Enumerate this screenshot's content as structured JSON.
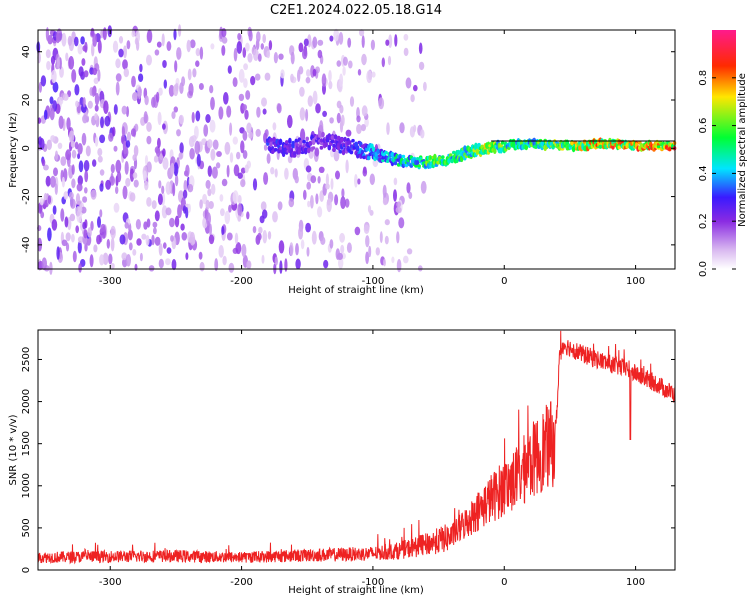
{
  "figure": {
    "title": "C2E1.2024.022.05.18.G14"
  },
  "chart_data": [
    {
      "type": "heatmap",
      "xlabel": "Height of straight line (km)",
      "ylabel": "Frequency (Hz)",
      "xlim": [
        -355,
        130
      ],
      "ylim": [
        -50,
        49
      ],
      "x_ticks": [
        -300,
        -200,
        -100,
        0,
        100
      ],
      "y_ticks": [
        -40,
        -20,
        0,
        20,
        40
      ],
      "colorbar": {
        "label": "Normalized spectral amplitude",
        "range": [
          0.0,
          1.0
        ],
        "ticks": [
          0.0,
          0.2,
          0.4,
          0.6,
          0.8
        ],
        "colormap": "white-purple-blue-cyan-green-yellow-red-magenta"
      },
      "ridge": {
        "x": [
          -180,
          -160,
          -140,
          -120,
          -100,
          -80,
          -60,
          -45,
          -30,
          -15,
          0,
          20,
          50,
          80,
          100,
          130
        ],
        "freq": [
          1,
          0,
          3,
          1,
          -2,
          -5,
          -6,
          -5,
          -2,
          0,
          1,
          2,
          1,
          2,
          1,
          1
        ],
        "amplitude": [
          0.3,
          0.3,
          0.25,
          0.3,
          0.4,
          0.5,
          0.6,
          0.6,
          0.6,
          0.7,
          0.6,
          0.6,
          0.7,
          0.85,
          0.8,
          0.85
        ]
      },
      "noise_floor": {
        "x_range": [
          -355,
          -60
        ],
        "amplitude": 0.15
      }
    },
    {
      "type": "line",
      "xlabel": "Height of straight line (km)",
      "ylabel": "SNR (10 * v/v)",
      "xlim": [
        -355,
        130
      ],
      "ylim": [
        0,
        2850
      ],
      "x_ticks": [
        -300,
        -200,
        -100,
        0,
        100
      ],
      "y_ticks": [
        0,
        500,
        1000,
        1500,
        2000,
        2500
      ],
      "color": "#ee2222",
      "series": [
        {
          "x": [
            -355,
            -300,
            -250,
            -200,
            -150,
            -120,
            -100,
            -80,
            -60,
            -40,
            -30,
            -20,
            -10,
            0,
            10,
            20,
            30,
            38,
            40,
            42,
            45,
            60,
            80,
            95,
            100,
            115,
            130
          ],
          "values": [
            150,
            160,
            165,
            150,
            175,
            185,
            195,
            230,
            300,
            400,
            550,
            700,
            850,
            980,
            1100,
            1280,
            1430,
            1520,
            1850,
            2550,
            2680,
            2560,
            2450,
            2380,
            2330,
            2220,
            2080
          ]
        }
      ]
    }
  ]
}
